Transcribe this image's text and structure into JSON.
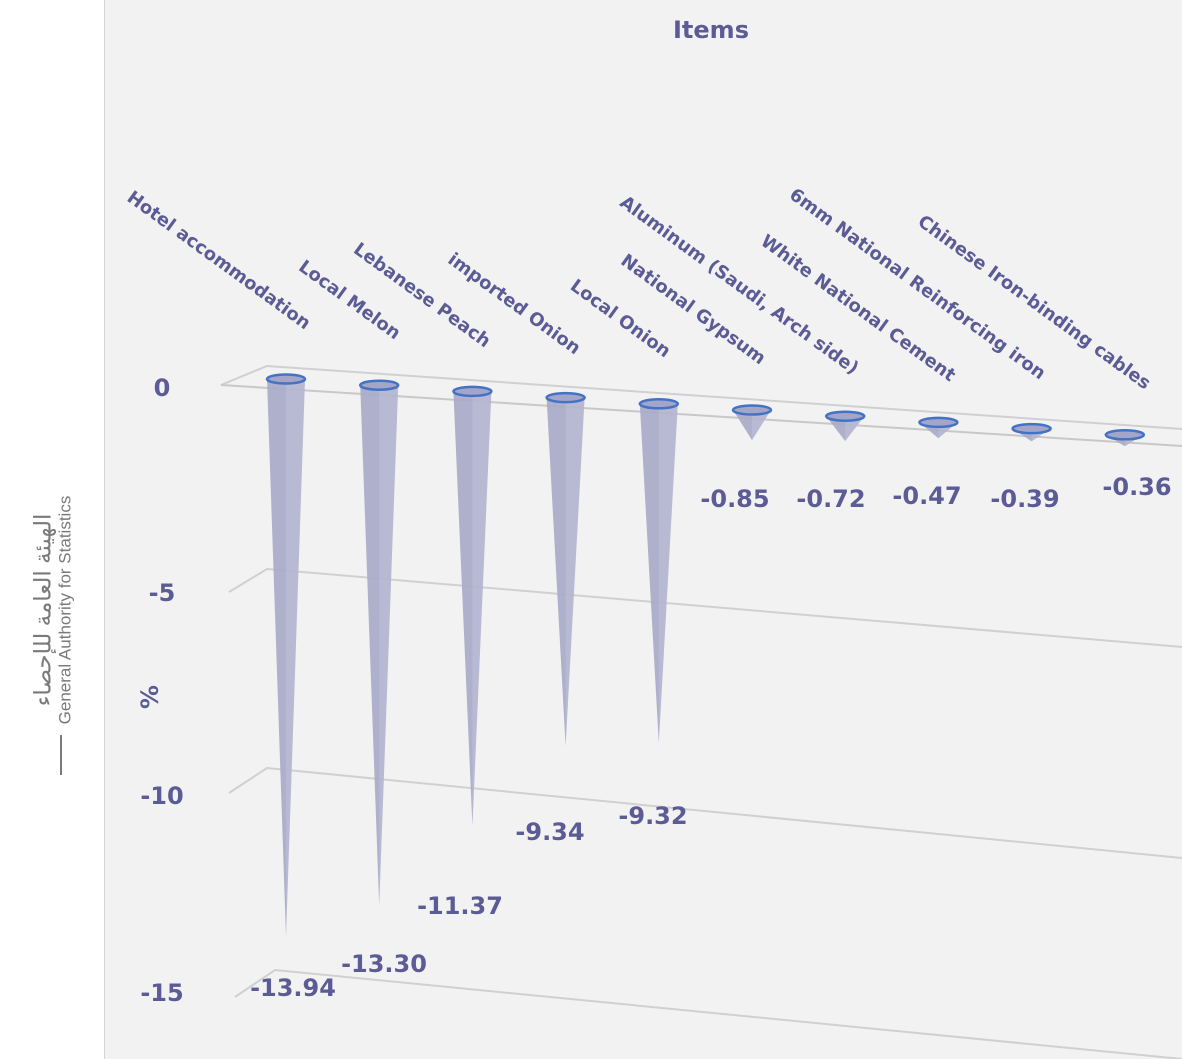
{
  "branding": {
    "arabic_name": "الهيئة العامة للإحصاء",
    "english_name": "General Authority for Statistics"
  },
  "chart_data": {
    "type": "bar",
    "style": "3d-cone",
    "title": "",
    "xlabel": "Items",
    "ylabel": "%",
    "ylim": [
      -15,
      0
    ],
    "yticks": [
      0,
      -5,
      -10,
      -15
    ],
    "categories": [
      "Hotel accommodation",
      "Local Melon",
      "Lebanese Peach",
      "imported Onion",
      "Local Onion",
      "National Gypsum",
      "Aluminum (Saudi, Arch side)",
      "White National Cement",
      "6mm National Reinforcing iron",
      "Chinese Iron-binding cables"
    ],
    "values": [
      -13.94,
      -13.3,
      -11.37,
      -9.34,
      -9.32,
      -0.85,
      -0.72,
      -0.47,
      -0.39,
      -0.36
    ],
    "value_labels": [
      "-13.94",
      "-13.30",
      "-11.37",
      "-9.34",
      "-9.32",
      "-0.85",
      "-0.72",
      "-0.47",
      "-0.39",
      "-0.36"
    ],
    "grid": true,
    "legend": "none",
    "colors": {
      "cone_body": "#a9aac9",
      "cone_rim": "#4472c4",
      "label_text": "#5b5b95",
      "gridline": "#d0d0d0",
      "background": "#f2f2f2"
    }
  }
}
